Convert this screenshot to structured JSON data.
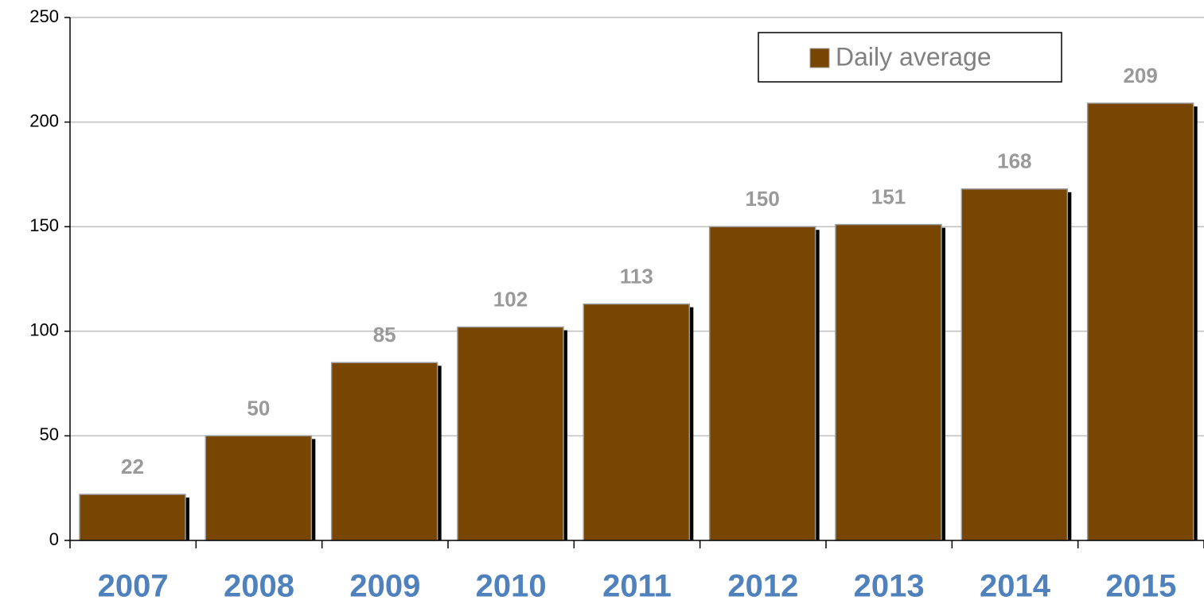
{
  "chart_data": {
    "type": "bar",
    "categories": [
      "2007",
      "2008",
      "2009",
      "2010",
      "2011",
      "2012",
      "2013",
      "2014",
      "2015"
    ],
    "series": [
      {
        "name": "Daily average",
        "color": "#784600",
        "values": [
          22,
          50,
          85,
          102,
          113,
          150,
          151,
          168,
          209
        ]
      }
    ],
    "ylim": [
      0,
      250
    ],
    "yticks": [
      0,
      50,
      100,
      150,
      200,
      250
    ],
    "grid": true,
    "legend": "top-right"
  }
}
